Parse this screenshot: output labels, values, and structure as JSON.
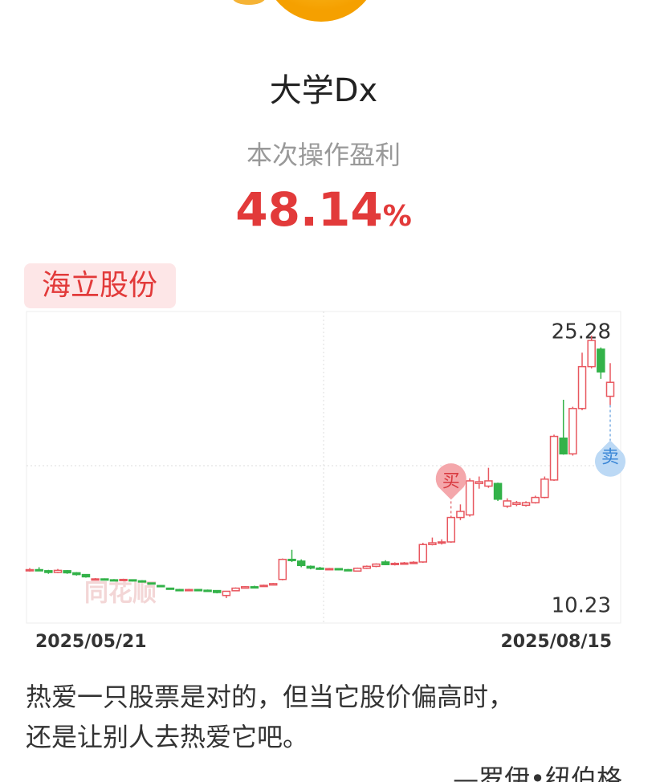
{
  "user_name": "大学Dx",
  "profit_caption": "本次操作盈利",
  "profit_value": 48.14,
  "profit_unit": "%",
  "stock_name": "海立股份",
  "quote_lines": [
    "热爱一只股票是对的，但当它股价偏高时，",
    "还是让别人去热爱它吧。"
  ],
  "quote_author": "—罗伊•纽伯格",
  "chart_data": {
    "type": "candlestick",
    "watermark": "同花顺",
    "date_labels": [
      "2025/05/21",
      "2025/08/15"
    ],
    "max_label": 25.28,
    "min_label": 10.23,
    "buy_label": "买",
    "sell_label": "卖",
    "up_color": "#e8575f",
    "down_color": "#33b249",
    "ylim": [
      8.8,
      26.66
    ],
    "open": [
      11.8,
      11.86,
      11.8,
      11.7,
      11.8,
      11.68,
      11.58,
      11.3,
      11.33,
      11.28,
      11.25,
      11.28,
      11.22,
      11.1,
      10.95,
      10.8,
      10.72,
      10.7,
      10.72,
      10.68,
      10.66,
      10.38,
      10.65,
      10.8,
      10.88,
      10.9,
      10.98,
      11.3,
      12.45,
      12.35,
      12.05,
      11.95,
      11.9,
      11.92,
      11.86,
      11.78,
      11.94,
      12.05,
      12.3,
      12.15,
      12.18,
      12.24,
      12.3,
      13.3,
      13.4,
      13.45,
      14.85,
      15.0,
      16.8,
      16.65,
      16.8,
      15.5,
      15.6,
      15.55,
      15.7,
      16.0,
      17.0,
      19.4,
      18.5,
      21.1,
      23.5,
      24.5,
      21.8
    ],
    "close": [
      11.86,
      11.82,
      11.7,
      11.82,
      11.68,
      11.58,
      11.45,
      11.33,
      11.28,
      11.25,
      11.3,
      11.22,
      11.2,
      11.05,
      10.9,
      10.75,
      10.7,
      10.72,
      10.68,
      10.66,
      10.55,
      10.62,
      10.8,
      10.88,
      10.86,
      10.96,
      11.06,
      12.45,
      12.4,
      12.1,
      11.95,
      11.9,
      11.92,
      11.86,
      11.84,
      11.94,
      12.05,
      12.18,
      12.15,
      12.22,
      12.24,
      12.28,
      13.3,
      13.4,
      13.45,
      14.85,
      15.2,
      16.95,
      16.9,
      16.95,
      15.9,
      15.8,
      15.7,
      15.7,
      16.0,
      17.05,
      19.5,
      18.5,
      21.1,
      23.5,
      25.0,
      23.2,
      22.6
    ],
    "high": [
      11.95,
      12.0,
      11.85,
      11.9,
      11.84,
      11.72,
      11.6,
      11.38,
      11.36,
      11.32,
      11.34,
      11.3,
      11.26,
      11.12,
      10.98,
      10.82,
      10.76,
      10.76,
      10.74,
      10.72,
      10.68,
      10.64,
      10.84,
      10.92,
      10.94,
      11.0,
      11.1,
      12.5,
      13.0,
      12.45,
      12.1,
      12.02,
      11.96,
      11.95,
      11.9,
      11.98,
      12.1,
      12.22,
      12.4,
      12.28,
      12.3,
      12.34,
      13.4,
      13.7,
      13.6,
      14.95,
      15.6,
      17.1,
      17.2,
      17.7,
      16.85,
      15.95,
      15.8,
      15.78,
      16.1,
      17.2,
      19.6,
      21.6,
      21.2,
      24.3,
      25.28,
      24.6,
      23.7
    ],
    "low": [
      11.75,
      11.78,
      11.62,
      11.66,
      11.62,
      11.52,
      11.4,
      11.26,
      11.24,
      11.2,
      11.22,
      11.18,
      11.16,
      11.02,
      10.86,
      10.72,
      10.66,
      10.66,
      10.65,
      10.62,
      10.5,
      10.23,
      10.62,
      10.78,
      10.82,
      10.88,
      10.96,
      11.25,
      12.3,
      12.0,
      11.88,
      11.85,
      11.85,
      11.82,
      11.8,
      11.75,
      11.9,
      12.0,
      12.12,
      12.1,
      12.14,
      12.2,
      12.25,
      13.25,
      13.3,
      13.4,
      14.7,
      14.9,
      16.5,
      16.55,
      15.8,
      15.4,
      15.5,
      15.48,
      15.65,
      15.95,
      16.95,
      18.45,
      18.4,
      21.0,
      23.4,
      22.8,
      21.3
    ]
  }
}
